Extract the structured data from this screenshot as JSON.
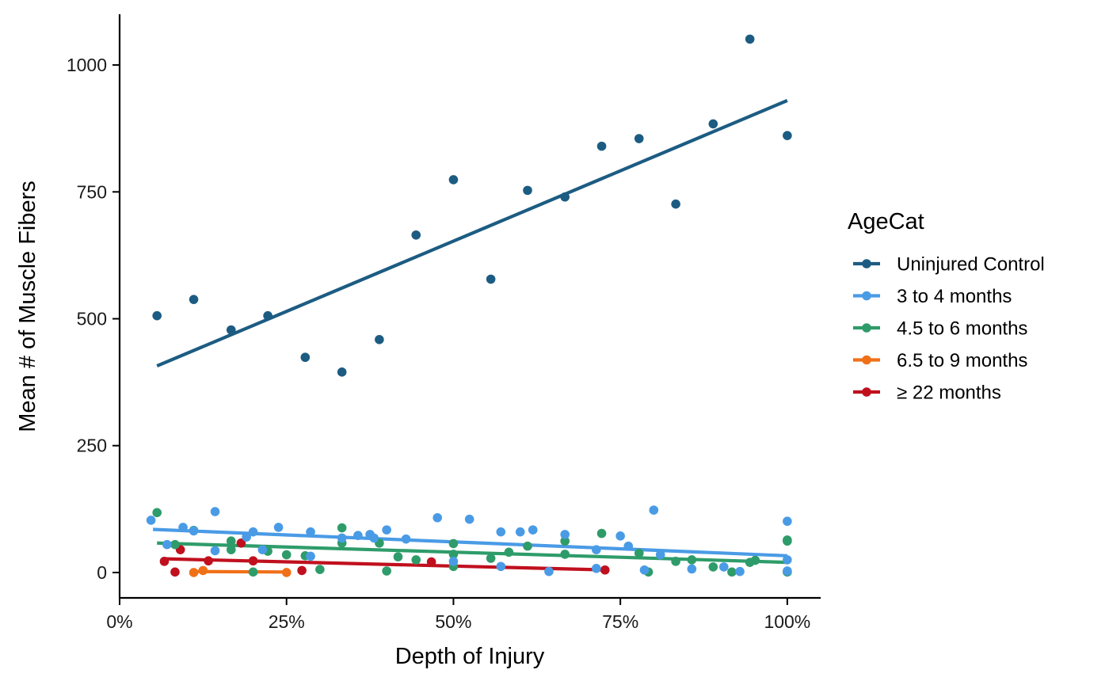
{
  "chart_data": {
    "type": "scatter",
    "xlabel": "Depth of Injury",
    "ylabel": "Mean # of Muscle Fibers",
    "xlim": [
      0,
      1.05
    ],
    "ylim": [
      -50,
      1100
    ],
    "x_ticks": [
      0,
      0.25,
      0.5,
      0.75,
      1.0
    ],
    "x_tick_labels": [
      "0%",
      "25%",
      "50%",
      "75%",
      "100%"
    ],
    "y_ticks": [
      0,
      250,
      500,
      750,
      1000
    ],
    "y_tick_labels": [
      "0",
      "250",
      "500",
      "750",
      "1000"
    ],
    "grid": false,
    "legend": {
      "title": "AgeCat",
      "position": "right"
    },
    "series": [
      {
        "name": "Uninjured Control",
        "color": "#1c5c82",
        "points": [
          [
            0.056,
            506
          ],
          [
            0.111,
            538
          ],
          [
            0.167,
            478
          ],
          [
            0.222,
            506
          ],
          [
            0.278,
            424
          ],
          [
            0.333,
            395
          ],
          [
            0.389,
            459
          ],
          [
            0.444,
            665
          ],
          [
            0.5,
            774
          ],
          [
            0.556,
            578
          ],
          [
            0.611,
            753
          ],
          [
            0.667,
            740
          ],
          [
            0.722,
            840
          ],
          [
            0.778,
            855
          ],
          [
            0.833,
            726
          ],
          [
            0.889,
            884
          ],
          [
            0.944,
            1051
          ],
          [
            1.0,
            861
          ]
        ],
        "trend": [
          [
            0.056,
            407
          ],
          [
            1.0,
            930
          ]
        ]
      },
      {
        "name": "3 to 4 months",
        "color": "#4a9be6",
        "points": [
          [
            0.047,
            103
          ],
          [
            0.071,
            55
          ],
          [
            0.095,
            89
          ],
          [
            0.111,
            82
          ],
          [
            0.143,
            43
          ],
          [
            0.143,
            120
          ],
          [
            0.19,
            70
          ],
          [
            0.2,
            80
          ],
          [
            0.214,
            45
          ],
          [
            0.238,
            89
          ],
          [
            0.286,
            80
          ],
          [
            0.286,
            32
          ],
          [
            0.333,
            68
          ],
          [
            0.357,
            73
          ],
          [
            0.375,
            75
          ],
          [
            0.381,
            68
          ],
          [
            0.4,
            84
          ],
          [
            0.429,
            66
          ],
          [
            0.476,
            108
          ],
          [
            0.5,
            22
          ],
          [
            0.524,
            105
          ],
          [
            0.571,
            80
          ],
          [
            0.571,
            12
          ],
          [
            0.6,
            80
          ],
          [
            0.619,
            84
          ],
          [
            0.643,
            2
          ],
          [
            0.667,
            75
          ],
          [
            0.714,
            45
          ],
          [
            0.714,
            8
          ],
          [
            0.75,
            72
          ],
          [
            0.762,
            52
          ],
          [
            0.786,
            5
          ],
          [
            0.8,
            123
          ],
          [
            0.81,
            35
          ],
          [
            0.857,
            7
          ],
          [
            0.905,
            11
          ],
          [
            0.929,
            2
          ],
          [
            1.0,
            101
          ],
          [
            1.0,
            25
          ],
          [
            1.0,
            3
          ]
        ],
        "trend": [
          [
            0.05,
            85
          ],
          [
            1.0,
            33
          ]
        ]
      },
      {
        "name": "4.5 to 6 months",
        "color": "#2e9c6a",
        "points": [
          [
            0.056,
            118
          ],
          [
            0.083,
            55
          ],
          [
            0.111,
            83
          ],
          [
            0.167,
            62
          ],
          [
            0.167,
            45
          ],
          [
            0.2,
            1
          ],
          [
            0.222,
            42
          ],
          [
            0.25,
            35
          ],
          [
            0.278,
            33
          ],
          [
            0.3,
            6
          ],
          [
            0.333,
            88
          ],
          [
            0.333,
            58
          ],
          [
            0.389,
            58
          ],
          [
            0.4,
            3
          ],
          [
            0.417,
            31
          ],
          [
            0.444,
            25
          ],
          [
            0.5,
            57
          ],
          [
            0.5,
            12
          ],
          [
            0.5,
            36
          ],
          [
            0.556,
            28
          ],
          [
            0.583,
            40
          ],
          [
            0.611,
            52
          ],
          [
            0.667,
            62
          ],
          [
            0.667,
            36
          ],
          [
            0.722,
            77
          ],
          [
            0.778,
            38
          ],
          [
            0.792,
            1
          ],
          [
            0.833,
            22
          ],
          [
            0.857,
            25
          ],
          [
            0.889,
            11
          ],
          [
            0.917,
            1
          ],
          [
            0.944,
            20
          ],
          [
            0.952,
            24
          ],
          [
            1.0,
            64
          ],
          [
            1.0,
            62
          ],
          [
            1.0,
            1
          ]
        ],
        "trend": [
          [
            0.056,
            58
          ],
          [
            1.0,
            20
          ]
        ]
      },
      {
        "name": "6.5 to 9 months",
        "color": "#f07018",
        "points": [
          [
            0.111,
            0
          ],
          [
            0.125,
            4
          ],
          [
            0.25,
            0
          ]
        ],
        "trend": [
          [
            0.111,
            2
          ],
          [
            0.25,
            1
          ]
        ]
      },
      {
        "name": "≥ 22 months",
        "color": "#c0101e",
        "points": [
          [
            0.067,
            22
          ],
          [
            0.083,
            1
          ],
          [
            0.091,
            45
          ],
          [
            0.133,
            23
          ],
          [
            0.182,
            58
          ],
          [
            0.2,
            23
          ],
          [
            0.273,
            4
          ],
          [
            0.467,
            21
          ],
          [
            0.727,
            5
          ]
        ],
        "trend": [
          [
            0.067,
            27
          ],
          [
            0.733,
            5
          ]
        ]
      }
    ]
  }
}
